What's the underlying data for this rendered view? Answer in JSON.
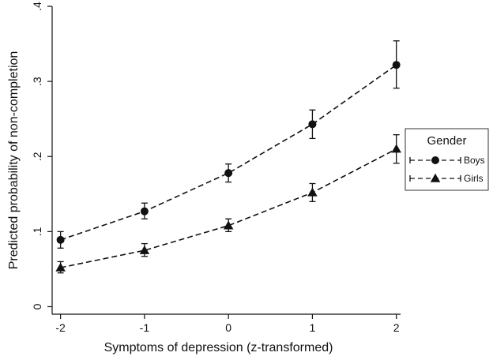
{
  "chart_data": {
    "type": "line",
    "title": "",
    "xlabel": "Symptoms of depression (z-transformed)",
    "ylabel": "Predicted probability of non-completion",
    "x": [
      -2,
      -1,
      0,
      1,
      2
    ],
    "x_tick_labels": [
      "-2",
      "-1",
      "0",
      "1",
      "2"
    ],
    "y_ticks": [
      0,
      0.1,
      0.2,
      0.3,
      0.4
    ],
    "y_tick_labels": [
      "0",
      ".1",
      ".2",
      ".3",
      ".4"
    ],
    "xlim": [
      -2.1,
      2.05
    ],
    "ylim": [
      -0.01,
      0.4
    ],
    "grid": false,
    "legend": {
      "title": "Gender",
      "placement": "right"
    },
    "series": [
      {
        "name": "Boys",
        "marker": "circle",
        "line_style": "dashed",
        "values": [
          0.089,
          0.127,
          0.178,
          0.243,
          0.322
        ],
        "ci_low": [
          0.078,
          0.117,
          0.166,
          0.224,
          0.291
        ],
        "ci_high": [
          0.1,
          0.138,
          0.19,
          0.262,
          0.354
        ]
      },
      {
        "name": "Girls",
        "marker": "triangle",
        "line_style": "dashed",
        "values": [
          0.052,
          0.075,
          0.108,
          0.152,
          0.21
        ],
        "ci_low": [
          0.045,
          0.067,
          0.1,
          0.14,
          0.191
        ],
        "ci_high": [
          0.06,
          0.084,
          0.117,
          0.164,
          0.229
        ]
      }
    ],
    "colors": {
      "series": "#111111",
      "axis": "#111111",
      "background": "#ffffff"
    }
  }
}
